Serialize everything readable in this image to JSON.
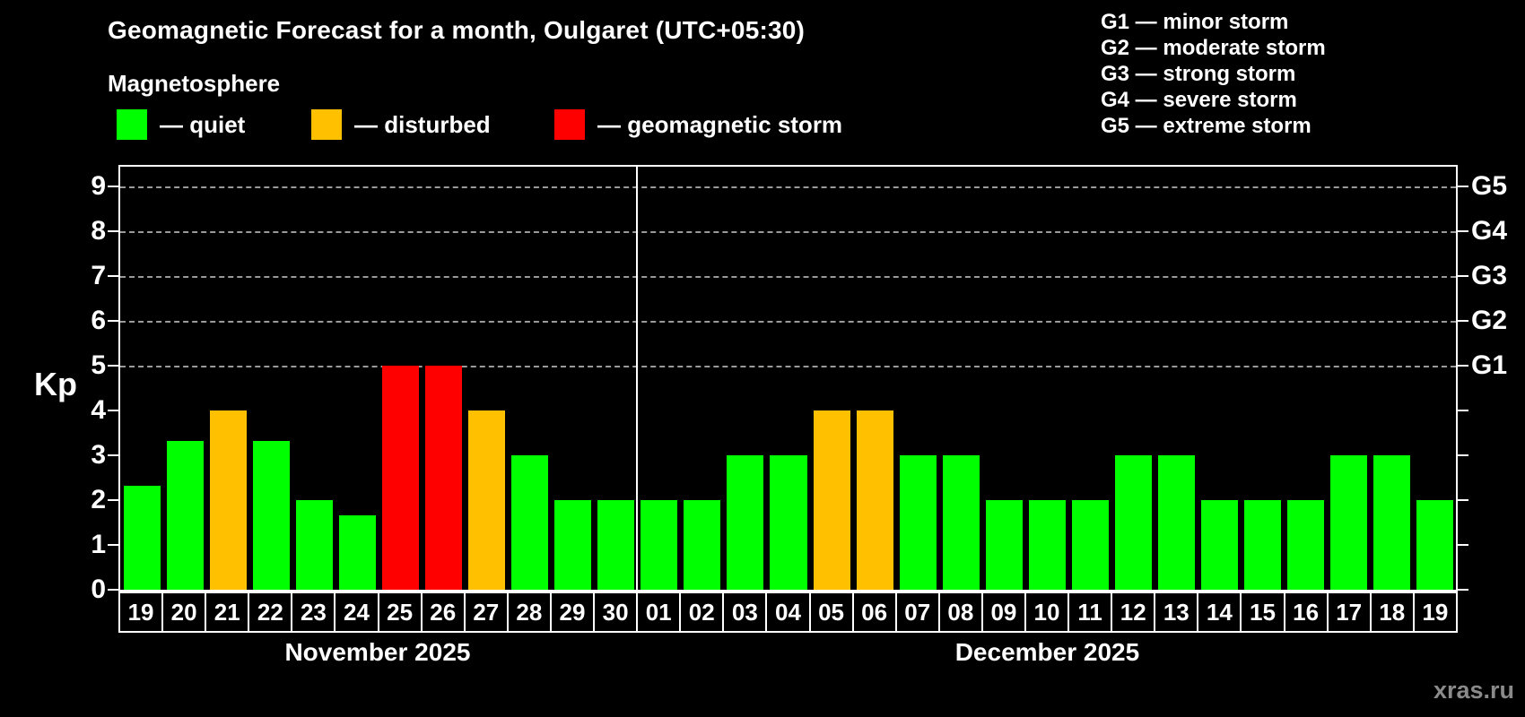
{
  "title": "Geomagnetic Forecast for a month, Oulgaret (UTC+05:30)",
  "subtitle": "Magnetosphere",
  "legend": {
    "items": [
      {
        "key": "quiet",
        "label": "— quiet",
        "color": "#00ff00"
      },
      {
        "key": "disturbed",
        "label": "— disturbed",
        "color": "#ffc000"
      },
      {
        "key": "storm",
        "label": "— geomagnetic storm",
        "color": "#ff0000"
      }
    ]
  },
  "g_scale_legend": [
    "G1 — minor storm",
    "G2 — moderate storm",
    "G3 — strong storm",
    "G4 — severe storm",
    "G5 — extreme storm"
  ],
  "watermark": "xras.ru",
  "chart_data": {
    "type": "bar",
    "ylabel": "Kp",
    "ylim": [
      0,
      9.52
    ],
    "yticks": [
      0,
      1,
      2,
      3,
      4,
      5,
      6,
      7,
      8,
      9
    ],
    "gridlines_at": [
      5,
      6,
      7,
      8,
      9
    ],
    "grid_style": "dashed-horizontal",
    "right_axis": [
      {
        "label": "G1",
        "kp": 5
      },
      {
        "label": "G2",
        "kp": 6
      },
      {
        "label": "G3",
        "kp": 7
      },
      {
        "label": "G4",
        "kp": 8
      },
      {
        "label": "G5",
        "kp": 9
      }
    ],
    "months": [
      {
        "label": "November 2025",
        "days": 12
      },
      {
        "label": "December 2025",
        "days": 19
      }
    ],
    "categories": [
      "19",
      "20",
      "21",
      "22",
      "23",
      "24",
      "25",
      "26",
      "27",
      "28",
      "29",
      "30",
      "01",
      "02",
      "03",
      "04",
      "05",
      "06",
      "07",
      "08",
      "09",
      "10",
      "11",
      "12",
      "13",
      "14",
      "15",
      "16",
      "17",
      "18",
      "19"
    ],
    "values": [
      2.33,
      3.33,
      4,
      3.33,
      2,
      1.67,
      5,
      5,
      4,
      3,
      2,
      2,
      2,
      2,
      3,
      3,
      4,
      4,
      3,
      3,
      2,
      2,
      2,
      3,
      3,
      2,
      2,
      2,
      3,
      3,
      2
    ],
    "statuses": [
      "quiet",
      "quiet",
      "disturbed",
      "quiet",
      "quiet",
      "quiet",
      "storm",
      "storm",
      "disturbed",
      "quiet",
      "quiet",
      "quiet",
      "quiet",
      "quiet",
      "quiet",
      "quiet",
      "disturbed",
      "disturbed",
      "quiet",
      "quiet",
      "quiet",
      "quiet",
      "quiet",
      "quiet",
      "quiet",
      "quiet",
      "quiet",
      "quiet",
      "quiet",
      "quiet",
      "quiet"
    ],
    "colors": {
      "quiet": "#00ff00",
      "disturbed": "#ffc000",
      "storm": "#ff0000"
    }
  }
}
